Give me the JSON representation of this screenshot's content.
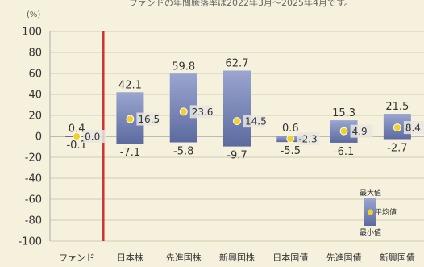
{
  "chart_data": {
    "type": "bar",
    "title_fragment": "ファンドの年間騰落率は2022年3月〜2025年4月です。",
    "unit_label": "(%)",
    "ylim": [
      -100,
      100
    ],
    "yticks": [
      100,
      80,
      60,
      40,
      20,
      0,
      -20,
      -40,
      -60,
      -80,
      -100
    ],
    "categories": [
      "ファンド",
      "日本株",
      "先進国株",
      "新興国株",
      "日本国債",
      "先進国債",
      "新興国債"
    ],
    "series": [
      {
        "name": "最大値",
        "values": [
          0.4,
          42.1,
          59.8,
          62.7,
          0.6,
          15.3,
          21.5
        ]
      },
      {
        "name": "平均値",
        "values": [
          0.0,
          16.5,
          23.6,
          14.5,
          -2.3,
          4.9,
          8.4
        ]
      },
      {
        "name": "最小値",
        "values": [
          -0.1,
          -7.1,
          -5.8,
          -9.7,
          -5.5,
          -6.1,
          -2.7
        ]
      }
    ],
    "legend": {
      "max": "最大値",
      "avg": "平均値",
      "min": "最小値",
      "position": "bottom-right"
    },
    "grid": true,
    "separator_after": "ファンド",
    "colors": {
      "bar_top": "#9aa6cf",
      "bar_bottom": "#5d6a9f",
      "avg_dot": "#f0d22a",
      "separator": "#c8352f",
      "grid": "#cfcab5",
      "background": "#f6f1dc"
    }
  }
}
